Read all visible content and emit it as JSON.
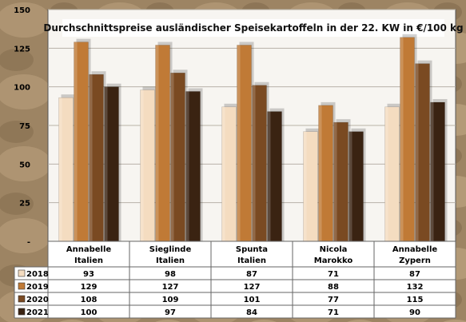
{
  "chart_data": {
    "type": "bar",
    "title": "Durchschnittspreise ausländischer Speisekartoffeln in der 22. KW in €/100 kg",
    "categories": [
      [
        "Annabelle",
        "Italien"
      ],
      [
        "Sieglinde",
        "Italien"
      ],
      [
        "Spunta",
        "Italien"
      ],
      [
        "Nicola",
        "Marokko"
      ],
      [
        "Annabelle",
        "Zypern"
      ]
    ],
    "series": [
      {
        "name": "2018",
        "values": [
          93,
          98,
          87,
          71,
          87
        ],
        "color": "#f4dcc0"
      },
      {
        "name": "2019",
        "values": [
          129,
          127,
          127,
          88,
          132
        ],
        "color": "#c07a36"
      },
      {
        "name": "2020",
        "values": [
          108,
          109,
          101,
          77,
          115
        ],
        "color": "#7a4a22"
      },
      {
        "name": "2021",
        "values": [
          100,
          97,
          84,
          71,
          90
        ],
        "color": "#3a2312"
      }
    ],
    "ylim": [
      0,
      150
    ],
    "yticks": [
      "-",
      "25",
      "50",
      "75",
      "100",
      "125",
      "150"
    ],
    "grid": true,
    "legend": "table-below"
  }
}
